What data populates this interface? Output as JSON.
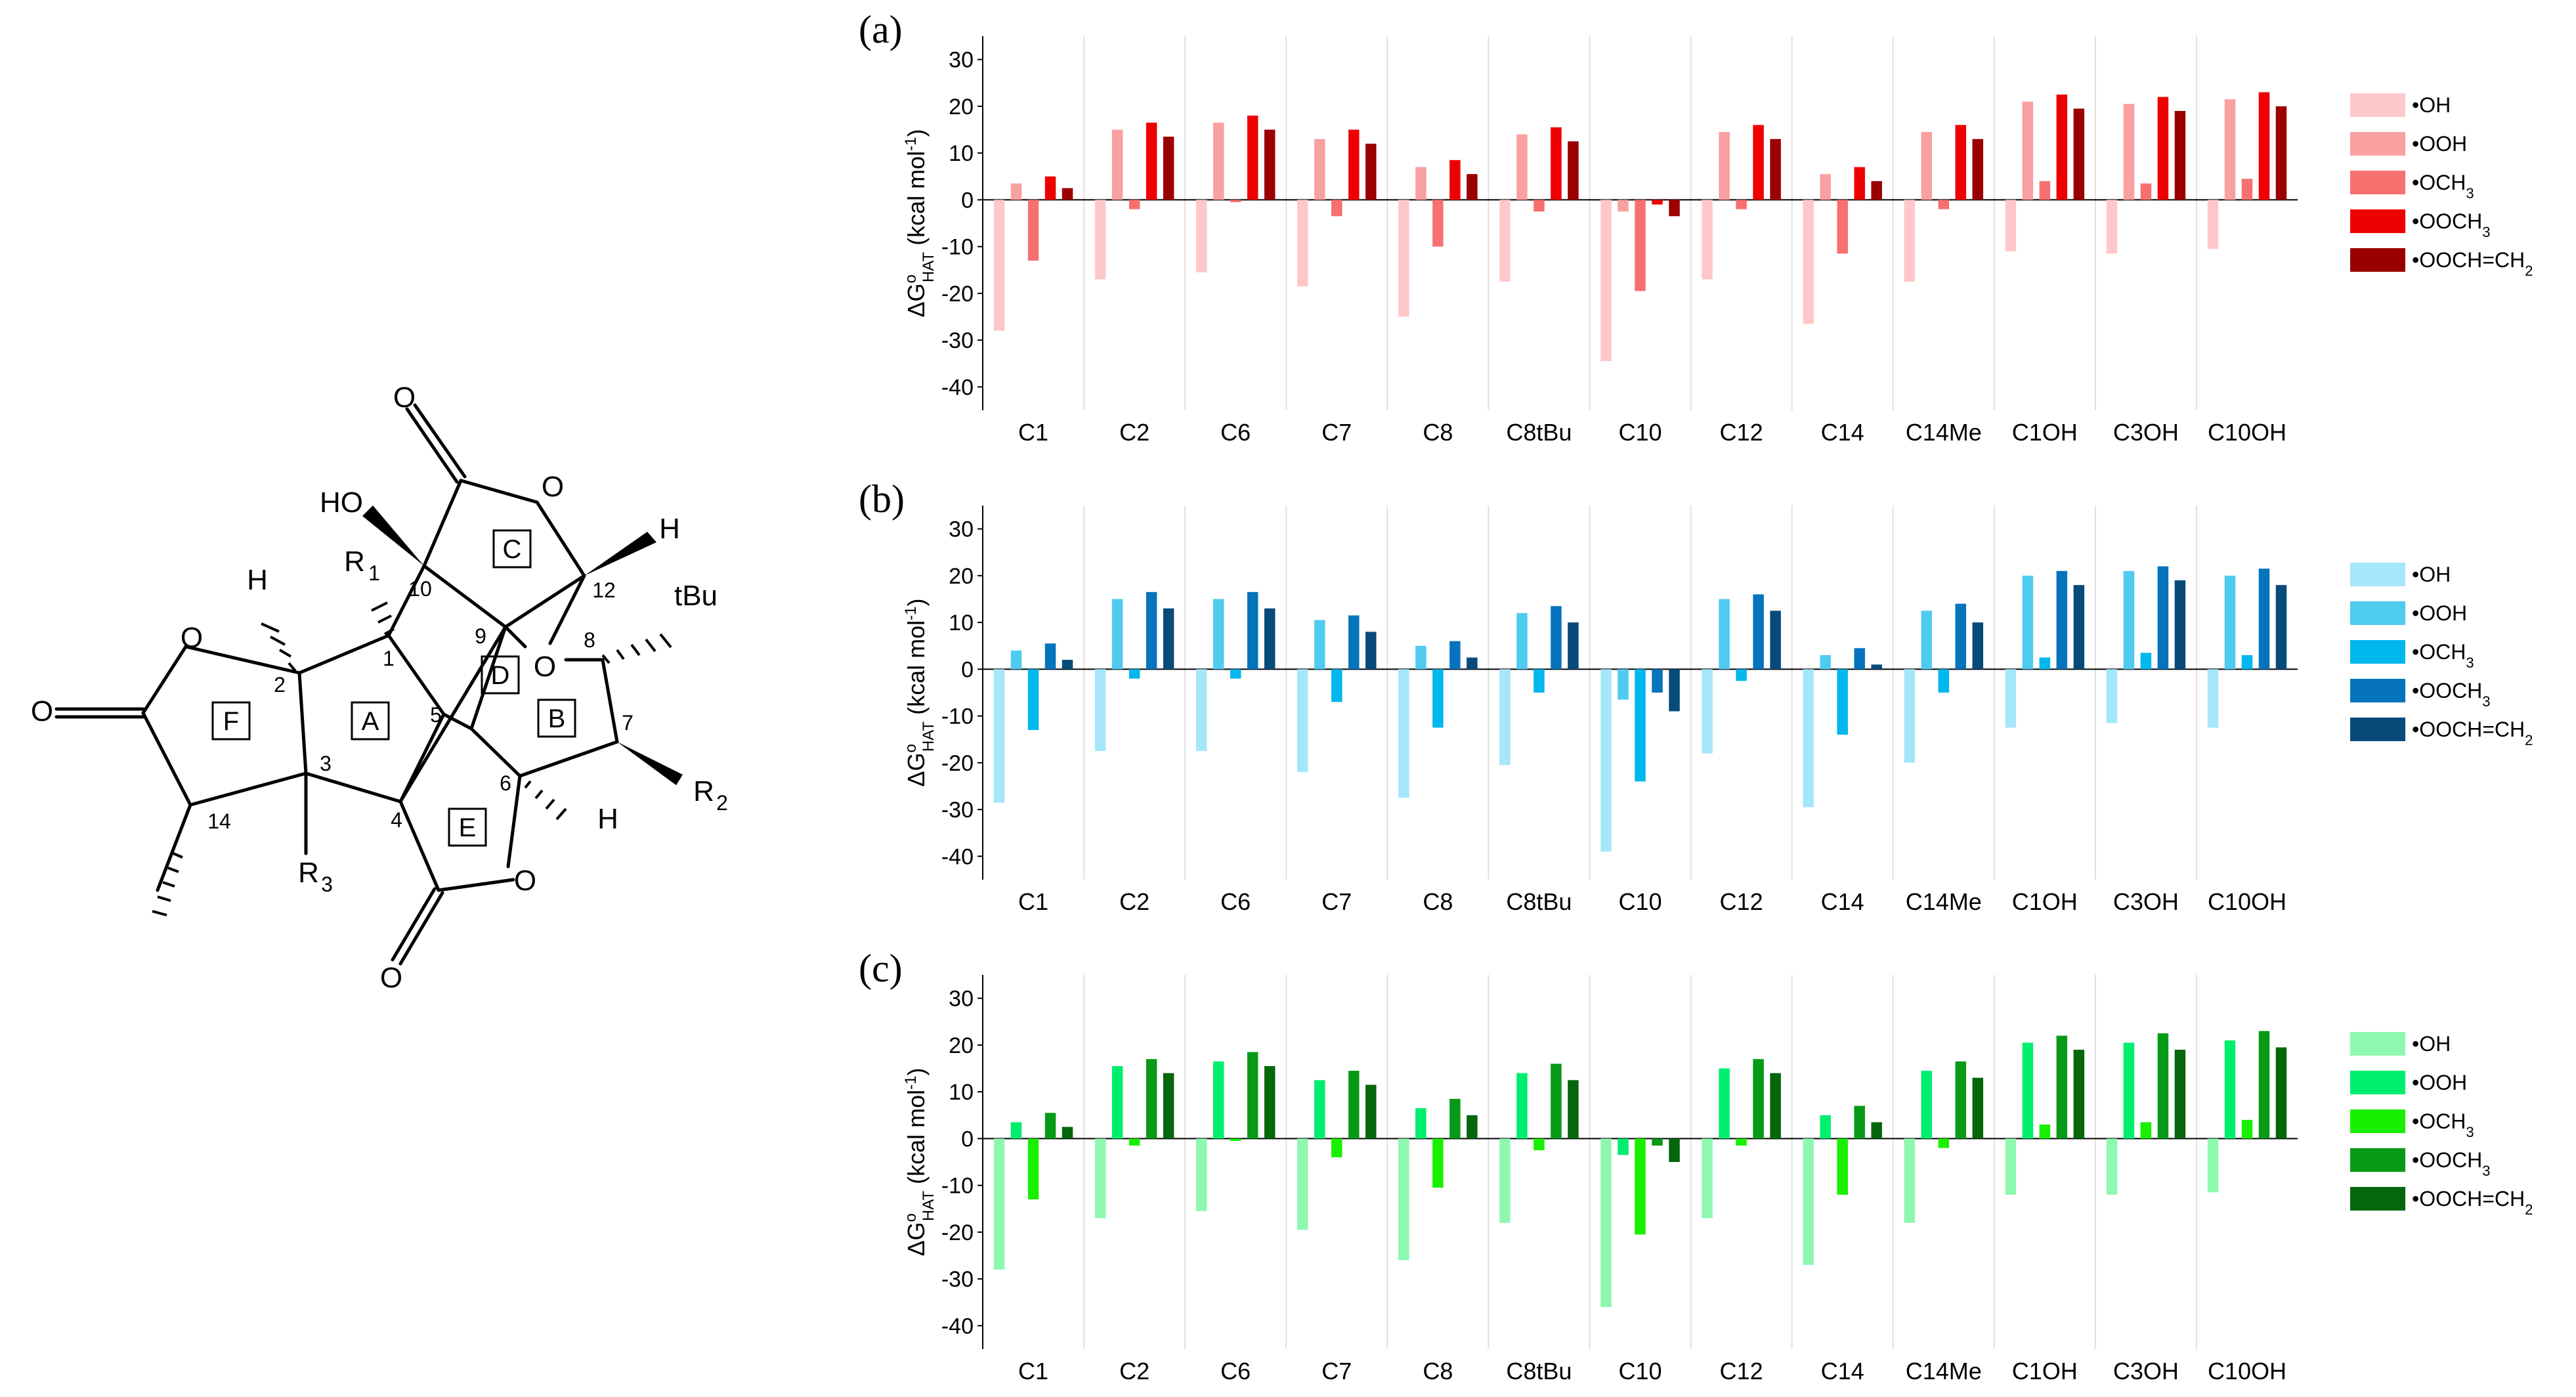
{
  "molecule": {
    "atoms": {
      "O_carbonyl_C_ring": "O",
      "HO": "HO",
      "O_C_ring": "O",
      "H_12": "H",
      "H_2": "H",
      "R1": "R",
      "R1_sub": "1",
      "n10": "10",
      "n12": "12",
      "tBu": "tBu",
      "O_F_ring": "O",
      "n9": "9",
      "O_D": "O",
      "n8": "8",
      "n2": "2",
      "n1": "1",
      "O_exo_F": "O",
      "n5": "5",
      "n7": "7",
      "n3": "3",
      "n6": "6",
      "R2": "R",
      "R2_sub": "2",
      "n14": "14",
      "n4": "4",
      "H_6": "H",
      "R3": "R",
      "R3_sub": "3",
      "O_E_ring": "O",
      "O_carbonyl_E": "O"
    },
    "rings": [
      "C",
      "F",
      "A",
      "D",
      "B",
      "E"
    ]
  },
  "chart_data": {
    "type": "bar",
    "categories": [
      "C1",
      "C2",
      "C6",
      "C7",
      "C8",
      "C8tBu",
      "C10",
      "C12",
      "C14",
      "C14Me",
      "C1OH",
      "C3OH",
      "C10OH"
    ],
    "ylabel": {
      "prefix": "ΔG",
      "sup": "o",
      "sub": "HAT",
      "suffix": " (kcal mol",
      "unit_sup": "-1",
      "close": ")"
    },
    "ylim": [
      -45,
      35
    ],
    "yticks": [
      -40,
      -30,
      -20,
      -10,
      0,
      10,
      20,
      30
    ],
    "legend_labels": [
      "•OH",
      "•OOH",
      "•OCH",
      "•OOCH",
      "•OOCH=CH"
    ],
    "legend_subs": [
      "",
      "",
      "3",
      "3",
      "2"
    ],
    "panels": [
      {
        "label": "(a)",
        "colors": [
          "#ffc8c8",
          "#f9a0a0",
          "#f77070",
          "#ee0000",
          "#9b0000"
        ],
        "series": [
          [
            -28,
            -17,
            -15.5,
            -18.5,
            -25,
            -17.5,
            -34.5,
            -17,
            -26.5,
            -17.5,
            -11,
            -11.5,
            -10.5
          ],
          [
            3.5,
            15,
            16.5,
            13,
            7,
            14,
            -2.5,
            14.5,
            5.5,
            14.5,
            21,
            20.5,
            21.5
          ],
          [
            -13,
            -2,
            -0.5,
            -3.5,
            -10,
            -2.5,
            -19.5,
            -2,
            -11.5,
            -2,
            4,
            3.5,
            4.5
          ],
          [
            5,
            16.5,
            18,
            15,
            8.5,
            15.5,
            -1,
            16,
            7,
            16,
            22.5,
            22,
            23
          ],
          [
            2.5,
            13.5,
            15,
            12,
            5.5,
            12.5,
            -3.5,
            13,
            4,
            13,
            19.5,
            19,
            20
          ]
        ]
      },
      {
        "label": "(b)",
        "colors": [
          "#a6e6fa",
          "#4fcbf0",
          "#00b7ee",
          "#0673bd",
          "#084b7b"
        ],
        "series": [
          [
            -28.5,
            -17.5,
            -17.5,
            -22,
            -27.5,
            -20.5,
            -39,
            -18,
            -29.5,
            -20,
            -12.5,
            -11.5,
            -12.5
          ],
          [
            4,
            15,
            15,
            10.5,
            5,
            12,
            -6.5,
            15,
            3,
            12.5,
            20,
            21,
            20
          ],
          [
            -13,
            -2,
            -2,
            -7,
            -12.5,
            -5,
            -24,
            -2.5,
            -14,
            -5,
            2.5,
            3.5,
            3
          ],
          [
            5.5,
            16.5,
            16.5,
            11.5,
            6,
            13.5,
            -5,
            16,
            4.5,
            14,
            21,
            22,
            21.5
          ],
          [
            2,
            13,
            13,
            8,
            2.5,
            10,
            -9,
            12.5,
            1,
            10,
            18,
            19,
            18
          ]
        ]
      },
      {
        "label": "(c)",
        "colors": [
          "#8ef8b0",
          "#00ee6e",
          "#19f000",
          "#079a17",
          "#05660b"
        ],
        "series": [
          [
            -28,
            -17,
            -15.5,
            -19.5,
            -26,
            -18,
            -36,
            -17,
            -27,
            -18,
            -12,
            -12,
            -11.5
          ],
          [
            3.5,
            15.5,
            16.5,
            12.5,
            6.5,
            14,
            -3.5,
            15,
            5,
            14.5,
            20.5,
            20.5,
            21
          ],
          [
            -13,
            -1.5,
            -0.5,
            -4,
            -10.5,
            -2.5,
            -20.5,
            -1.5,
            -12,
            -2,
            3,
            3.5,
            4
          ],
          [
            5.5,
            17,
            18.5,
            14.5,
            8.5,
            16,
            -1.5,
            17,
            7,
            16.5,
            22,
            22.5,
            23
          ],
          [
            2.5,
            14,
            15.5,
            11.5,
            5,
            12.5,
            -5,
            14,
            3.5,
            13,
            19,
            19,
            19.5
          ]
        ]
      }
    ]
  }
}
